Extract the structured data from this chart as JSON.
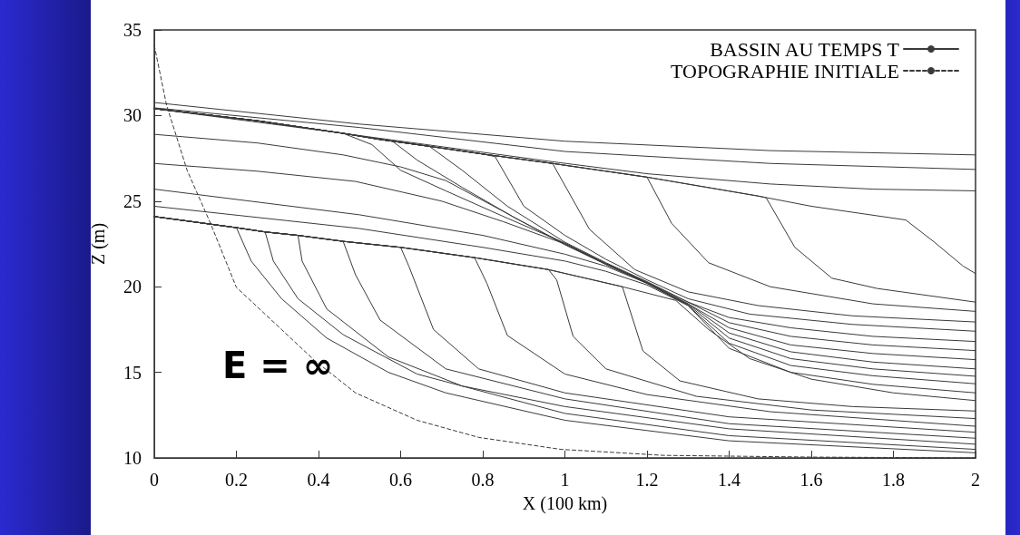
{
  "chart_data": {
    "type": "line",
    "xlabel": "X (100 km)",
    "ylabel": "Z (m)",
    "xlim": [
      0,
      2
    ],
    "xticks": [
      0,
      0.2,
      0.4,
      0.6,
      0.8,
      1,
      1.2,
      1.4,
      1.6,
      1.8,
      2
    ],
    "ylim": [
      10,
      35
    ],
    "yticks": [
      10,
      15,
      20,
      25,
      30,
      35
    ],
    "grid": false,
    "legend": "top right",
    "marker": "none",
    "line_style": "solid",
    "annotations": [
      "E = ∞"
    ],
    "series": [
      {
        "name": "BASSIN AU TEMPS T",
        "color": "#3a3a3a",
        "x": [
          0,
          0.5,
          1.0,
          1.5,
          2
        ],
        "values": [
          30.76,
          29.5,
          28.5,
          27.95,
          27.7
        ]
      },
      {
        "name": "TOPOGRAPHIE INITIALE",
        "color": "#3a3a3a",
        "line_style": "dashed",
        "x": [
          0,
          0.03,
          0.08,
          0.137,
          0.2,
          0.31,
          0.39,
          0.49,
          0.64,
          0.79,
          0.99,
          1.24,
          1.6,
          2
        ],
        "values": [
          34.1,
          30.6,
          26.8,
          23.7,
          19.96,
          17.5,
          15.7,
          13.8,
          12.2,
          11.2,
          10.5,
          10.15,
          10.05,
          10.0
        ]
      },
      {
        "color": "#3a3a3a",
        "x": [
          0,
          0.5,
          1.0,
          1.5,
          2
        ],
        "values": [
          30.45,
          29.3,
          27.9,
          27.2,
          26.85
        ]
      },
      {
        "color": "#3a3a3a",
        "x": [
          0,
          0.46,
          0.97,
          1.2,
          1.5,
          1.75,
          2
        ],
        "values": [
          30.4,
          28.96,
          27.3,
          26.6,
          26.0,
          25.7,
          25.6
        ]
      },
      {
        "color": "#3a3a3a",
        "x": [
          0,
          0.25,
          0.46,
          0.55,
          0.67,
          0.8,
          0.97,
          1.2,
          1.47,
          1.6,
          1.83,
          1.9,
          1.97,
          2
        ],
        "values": [
          30.4,
          29.7,
          28.96,
          28.6,
          28.2,
          27.75,
          27.2,
          26.4,
          25.3,
          24.7,
          23.9,
          22.6,
          21.2,
          20.77
        ]
      },
      {
        "color": "#3a3a3a",
        "x": [
          0,
          0.25,
          0.46,
          0.55,
          0.67,
          0.8,
          0.97,
          1.2,
          1.47,
          1.49,
          1.56,
          1.65,
          1.76,
          2
        ],
        "values": [
          30.4,
          29.7,
          28.96,
          28.6,
          28.2,
          27.75,
          27.2,
          26.4,
          25.3,
          25.2,
          22.3,
          20.5,
          19.9,
          19.1
        ]
      },
      {
        "color": "#3a3a3a",
        "x": [
          0,
          0.25,
          0.46,
          0.55,
          0.67,
          0.8,
          0.97,
          1.2,
          1.26,
          1.35,
          1.5,
          1.75,
          2
        ],
        "values": [
          30.4,
          29.7,
          28.96,
          28.6,
          28.2,
          27.75,
          27.2,
          26.4,
          23.7,
          21.4,
          20.0,
          19.0,
          18.56
        ]
      },
      {
        "color": "#3a3a3a",
        "x": [
          0,
          0.25,
          0.46,
          0.55,
          0.67,
          0.8,
          0.97,
          1.06,
          1.17,
          1.3,
          1.47,
          1.7,
          2
        ],
        "values": [
          30.4,
          29.7,
          28.96,
          28.6,
          28.2,
          27.75,
          27.2,
          23.35,
          21.0,
          19.7,
          18.9,
          18.3,
          17.94
        ]
      },
      {
        "color": "#3a3a3a",
        "x": [
          0,
          0.25,
          0.46,
          0.55,
          0.67,
          0.8,
          0.83,
          0.9,
          1.0,
          1.1,
          1.2,
          1.3,
          1.45,
          1.7,
          2
        ],
        "values": [
          30.4,
          29.7,
          28.96,
          28.6,
          28.2,
          27.75,
          27.6,
          24.7,
          23.0,
          21.6,
          20.4,
          19.3,
          18.4,
          17.8,
          17.4
        ]
      },
      {
        "color": "#3a3a3a",
        "x": [
          0,
          0.25,
          0.46,
          0.55,
          0.67,
          0.75,
          0.86,
          1.0,
          1.1,
          1.2,
          1.3,
          1.4,
          1.55,
          1.75,
          2
        ],
        "values": [
          30.4,
          29.7,
          28.96,
          28.6,
          28.2,
          26.8,
          24.7,
          22.6,
          21.4,
          20.3,
          19.1,
          18.2,
          17.6,
          17.1,
          16.8
        ]
      },
      {
        "color": "#3a3a3a",
        "x": [
          0,
          0.25,
          0.46,
          0.55,
          0.58,
          0.64,
          0.75,
          0.88,
          1.0,
          1.1,
          1.2,
          1.3,
          1.4,
          1.55,
          1.75,
          2
        ],
        "values": [
          30.4,
          29.7,
          28.96,
          28.6,
          28.5,
          27.4,
          25.8,
          24.0,
          22.5,
          21.35,
          20.25,
          19.1,
          17.9,
          17.1,
          16.6,
          16.27
        ]
      },
      {
        "color": "#3a3a3a",
        "x": [
          0,
          0.25,
          0.46,
          0.53,
          0.6,
          0.71,
          0.86,
          1.0,
          1.1,
          1.2,
          1.3,
          1.4,
          1.55,
          1.75,
          2
        ],
        "values": [
          30.4,
          29.7,
          28.96,
          28.3,
          26.8,
          25.6,
          24.0,
          22.55,
          21.35,
          20.25,
          19.0,
          17.6,
          16.6,
          16.1,
          15.74
        ]
      },
      {
        "color": "#3a3a3a",
        "x": [
          0,
          0.25,
          0.46,
          0.6,
          0.71,
          0.85,
          1.0,
          1.1,
          1.2,
          1.3,
          1.4,
          1.55,
          1.75,
          2
        ],
        "values": [
          28.9,
          28.4,
          27.7,
          27.0,
          26.2,
          24.4,
          22.45,
          21.3,
          20.2,
          19.0,
          17.3,
          16.2,
          15.6,
          15.2
        ]
      },
      {
        "color": "#3a3a3a",
        "x": [
          0,
          0.25,
          0.49,
          0.7,
          0.85,
          1.0,
          1.1,
          1.2,
          1.3,
          1.4,
          1.55,
          1.75,
          2
        ],
        "values": [
          27.2,
          26.75,
          26.15,
          25.0,
          23.8,
          22.5,
          21.3,
          20.2,
          18.95,
          17.0,
          15.8,
          15.2,
          14.77
        ]
      },
      {
        "color": "#3a3a3a",
        "x": [
          0,
          0.5,
          0.8,
          1.0,
          1.1,
          1.2,
          1.3,
          1.4,
          1.55,
          1.75,
          2
        ],
        "values": [
          25.7,
          24.2,
          23.0,
          21.9,
          21.2,
          20.2,
          18.9,
          16.7,
          15.4,
          14.8,
          14.33
        ]
      },
      {
        "color": "#3a3a3a",
        "x": [
          0,
          0.5,
          0.8,
          1.0,
          1.1,
          1.2,
          1.3,
          1.4,
          1.55,
          1.75,
          2
        ],
        "values": [
          24.7,
          23.4,
          22.3,
          21.5,
          20.9,
          20.1,
          18.9,
          16.4,
          15.0,
          14.3,
          13.8
        ]
      },
      {
        "color": "#3a3a3a",
        "x": [
          0,
          0.2,
          0.27,
          0.35,
          0.46,
          0.6,
          0.78,
          0.96,
          1.14,
          1.27,
          1.35,
          1.45,
          1.6,
          1.8,
          2
        ],
        "values": [
          24.1,
          23.45,
          23.2,
          23.0,
          22.65,
          22.3,
          21.7,
          21.0,
          20.0,
          19.2,
          17.5,
          15.8,
          14.6,
          13.8,
          13.35
        ]
      },
      {
        "color": "#3a3a3a",
        "x": [
          0,
          0.2,
          0.27,
          0.35,
          0.46,
          0.6,
          0.78,
          0.96,
          1.14,
          1.19,
          1.28,
          1.47,
          1.7,
          2
        ],
        "values": [
          24.1,
          23.45,
          23.2,
          23.0,
          22.65,
          22.3,
          21.7,
          21.0,
          20.0,
          16.25,
          14.5,
          13.45,
          13.0,
          12.74
        ]
      },
      {
        "color": "#3a3a3a",
        "x": [
          0,
          0.2,
          0.27,
          0.35,
          0.46,
          0.6,
          0.78,
          0.96,
          0.98,
          1.02,
          1.1,
          1.32,
          1.6,
          2
        ],
        "values": [
          24.1,
          23.45,
          23.2,
          23.0,
          22.65,
          22.3,
          21.7,
          21.0,
          20.4,
          17.1,
          15.2,
          13.6,
          12.8,
          12.3
        ]
      },
      {
        "color": "#3a3a3a",
        "x": [
          0,
          0.2,
          0.27,
          0.35,
          0.46,
          0.6,
          0.78,
          0.81,
          0.86,
          1.0,
          1.2,
          1.5,
          2
        ],
        "values": [
          24.1,
          23.45,
          23.2,
          23.0,
          22.65,
          22.3,
          21.7,
          20.2,
          17.15,
          14.9,
          13.7,
          12.7,
          11.85
        ]
      },
      {
        "color": "#3a3a3a",
        "x": [
          0,
          0.2,
          0.27,
          0.35,
          0.46,
          0.6,
          0.62,
          0.68,
          0.79,
          1.0,
          1.4,
          2
        ],
        "values": [
          24.1,
          23.45,
          23.2,
          23.0,
          22.65,
          22.3,
          21.2,
          17.5,
          15.2,
          13.8,
          12.4,
          11.5
        ]
      },
      {
        "color": "#3a3a3a",
        "x": [
          0,
          0.2,
          0.27,
          0.35,
          0.46,
          0.49,
          0.55,
          0.71,
          1.0,
          1.4,
          2
        ],
        "values": [
          24.1,
          23.45,
          23.2,
          23.0,
          22.65,
          20.7,
          18.05,
          15.2,
          13.45,
          12.0,
          11.15
        ]
      },
      {
        "color": "#3a3a3a",
        "x": [
          0,
          0.2,
          0.27,
          0.35,
          0.36,
          0.42,
          0.57,
          0.75,
          1.0,
          1.4,
          2
        ],
        "values": [
          24.1,
          23.45,
          23.2,
          23.0,
          21.5,
          18.7,
          15.9,
          14.2,
          13.0,
          11.7,
          10.8
        ]
      },
      {
        "color": "#3a3a3a",
        "x": [
          0,
          0.2,
          0.27,
          0.29,
          0.35,
          0.46,
          0.64,
          1.0,
          1.4,
          2
        ],
        "values": [
          24.1,
          23.45,
          23.2,
          21.5,
          19.3,
          17.2,
          14.9,
          12.6,
          11.3,
          10.5
        ]
      },
      {
        "color": "#3a3a3a",
        "x": [
          0,
          0.2,
          0.236,
          0.31,
          0.42,
          0.57,
          0.71,
          1.0,
          1.4,
          2
        ],
        "values": [
          24.1,
          23.45,
          21.5,
          19.3,
          17.0,
          15.0,
          13.8,
          12.2,
          11.0,
          10.3
        ]
      }
    ]
  }
}
